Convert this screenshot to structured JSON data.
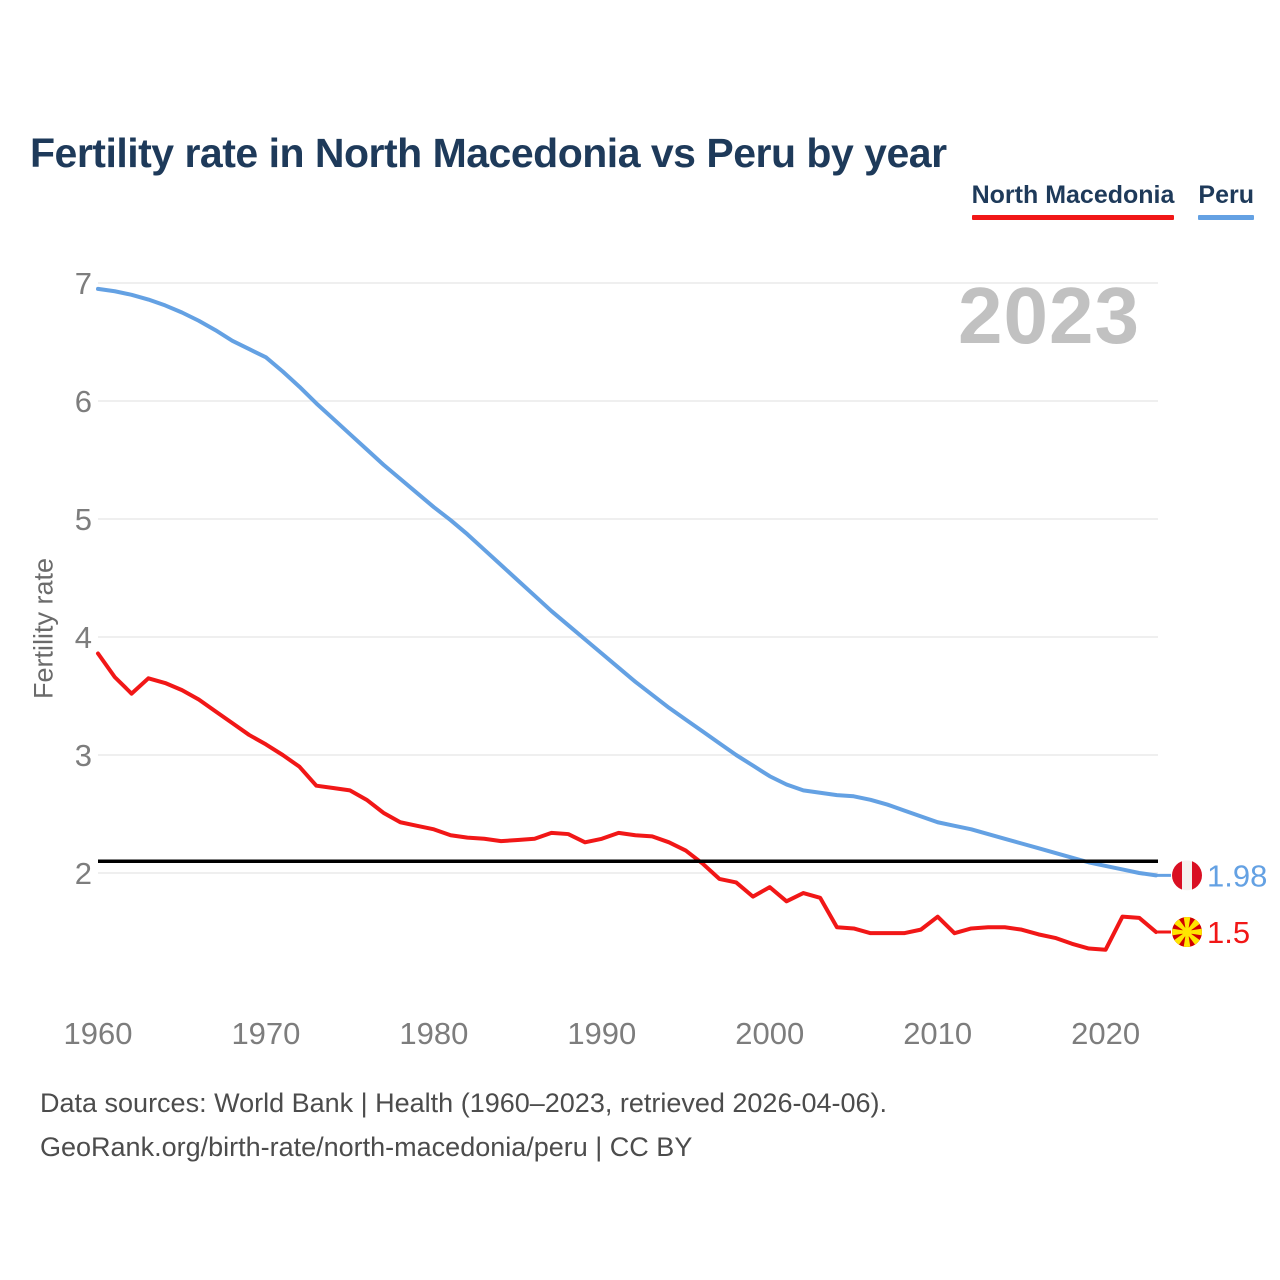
{
  "title": "Fertility rate in North Macedonia vs Peru by year",
  "watermark": "2023",
  "legend": [
    {
      "label": "North Macedonia",
      "color": "#f11717"
    },
    {
      "label": "Peru",
      "color": "#64a1e3"
    }
  ],
  "footer": {
    "line1": "Data sources: World Bank | Health (1960–2023, retrieved 2026-04-06).",
    "line2": "GeoRank.org/birth-rate/north-macedonia/peru | CC BY"
  },
  "chart_data": {
    "type": "line",
    "title": "Fertility rate in North Macedonia vs Peru by year",
    "xlabel": "",
    "ylabel": "Fertility rate",
    "grid": true,
    "legend_position": "top-right",
    "ylim": [
      1.2,
      7.1
    ],
    "y_ticks": [
      2,
      3,
      4,
      5,
      6,
      7
    ],
    "x_ticks": [
      1960,
      1970,
      1980,
      1990,
      2000,
      2010,
      2020
    ],
    "reference_line": 2.1,
    "x": [
      1960,
      1961,
      1962,
      1963,
      1964,
      1965,
      1966,
      1967,
      1968,
      1969,
      1970,
      1971,
      1972,
      1973,
      1974,
      1975,
      1976,
      1977,
      1978,
      1979,
      1980,
      1981,
      1982,
      1983,
      1984,
      1985,
      1986,
      1987,
      1988,
      1989,
      1990,
      1991,
      1992,
      1993,
      1994,
      1995,
      1996,
      1997,
      1998,
      1999,
      2000,
      2001,
      2002,
      2003,
      2004,
      2005,
      2006,
      2007,
      2008,
      2009,
      2010,
      2011,
      2012,
      2013,
      2014,
      2015,
      2016,
      2017,
      2018,
      2019,
      2020,
      2021,
      2022,
      2023
    ],
    "series": [
      {
        "name": "North Macedonia",
        "color": "#f11717",
        "flag": "north-macedonia",
        "end_label": "1.5",
        "values": [
          3.86,
          3.66,
          3.52,
          3.65,
          3.61,
          3.55,
          3.47,
          3.37,
          3.27,
          3.17,
          3.09,
          3.0,
          2.9,
          2.74,
          2.72,
          2.7,
          2.62,
          2.51,
          2.43,
          2.4,
          2.37,
          2.32,
          2.3,
          2.29,
          2.27,
          2.28,
          2.29,
          2.34,
          2.33,
          2.26,
          2.29,
          2.34,
          2.32,
          2.31,
          2.26,
          2.19,
          2.08,
          1.95,
          1.92,
          1.8,
          1.88,
          1.76,
          1.83,
          1.79,
          1.54,
          1.53,
          1.49,
          1.49,
          1.49,
          1.52,
          1.63,
          1.49,
          1.53,
          1.54,
          1.54,
          1.52,
          1.48,
          1.45,
          1.4,
          1.36,
          1.35,
          1.63,
          1.62,
          1.5
        ]
      },
      {
        "name": "Peru",
        "color": "#64a1e3",
        "flag": "peru",
        "end_label": "1.98",
        "values": [
          6.95,
          6.93,
          6.9,
          6.86,
          6.81,
          6.75,
          6.68,
          6.6,
          6.51,
          6.44,
          6.37,
          6.25,
          6.12,
          5.98,
          5.85,
          5.72,
          5.59,
          5.46,
          5.34,
          5.22,
          5.1,
          4.99,
          4.87,
          4.74,
          4.61,
          4.48,
          4.35,
          4.22,
          4.1,
          3.98,
          3.86,
          3.74,
          3.62,
          3.51,
          3.4,
          3.3,
          3.2,
          3.1,
          3.0,
          2.91,
          2.82,
          2.75,
          2.7,
          2.68,
          2.66,
          2.65,
          2.62,
          2.58,
          2.53,
          2.48,
          2.43,
          2.4,
          2.37,
          2.33,
          2.29,
          2.25,
          2.21,
          2.17,
          2.13,
          2.09,
          2.06,
          2.03,
          2.0,
          1.98
        ]
      }
    ]
  }
}
